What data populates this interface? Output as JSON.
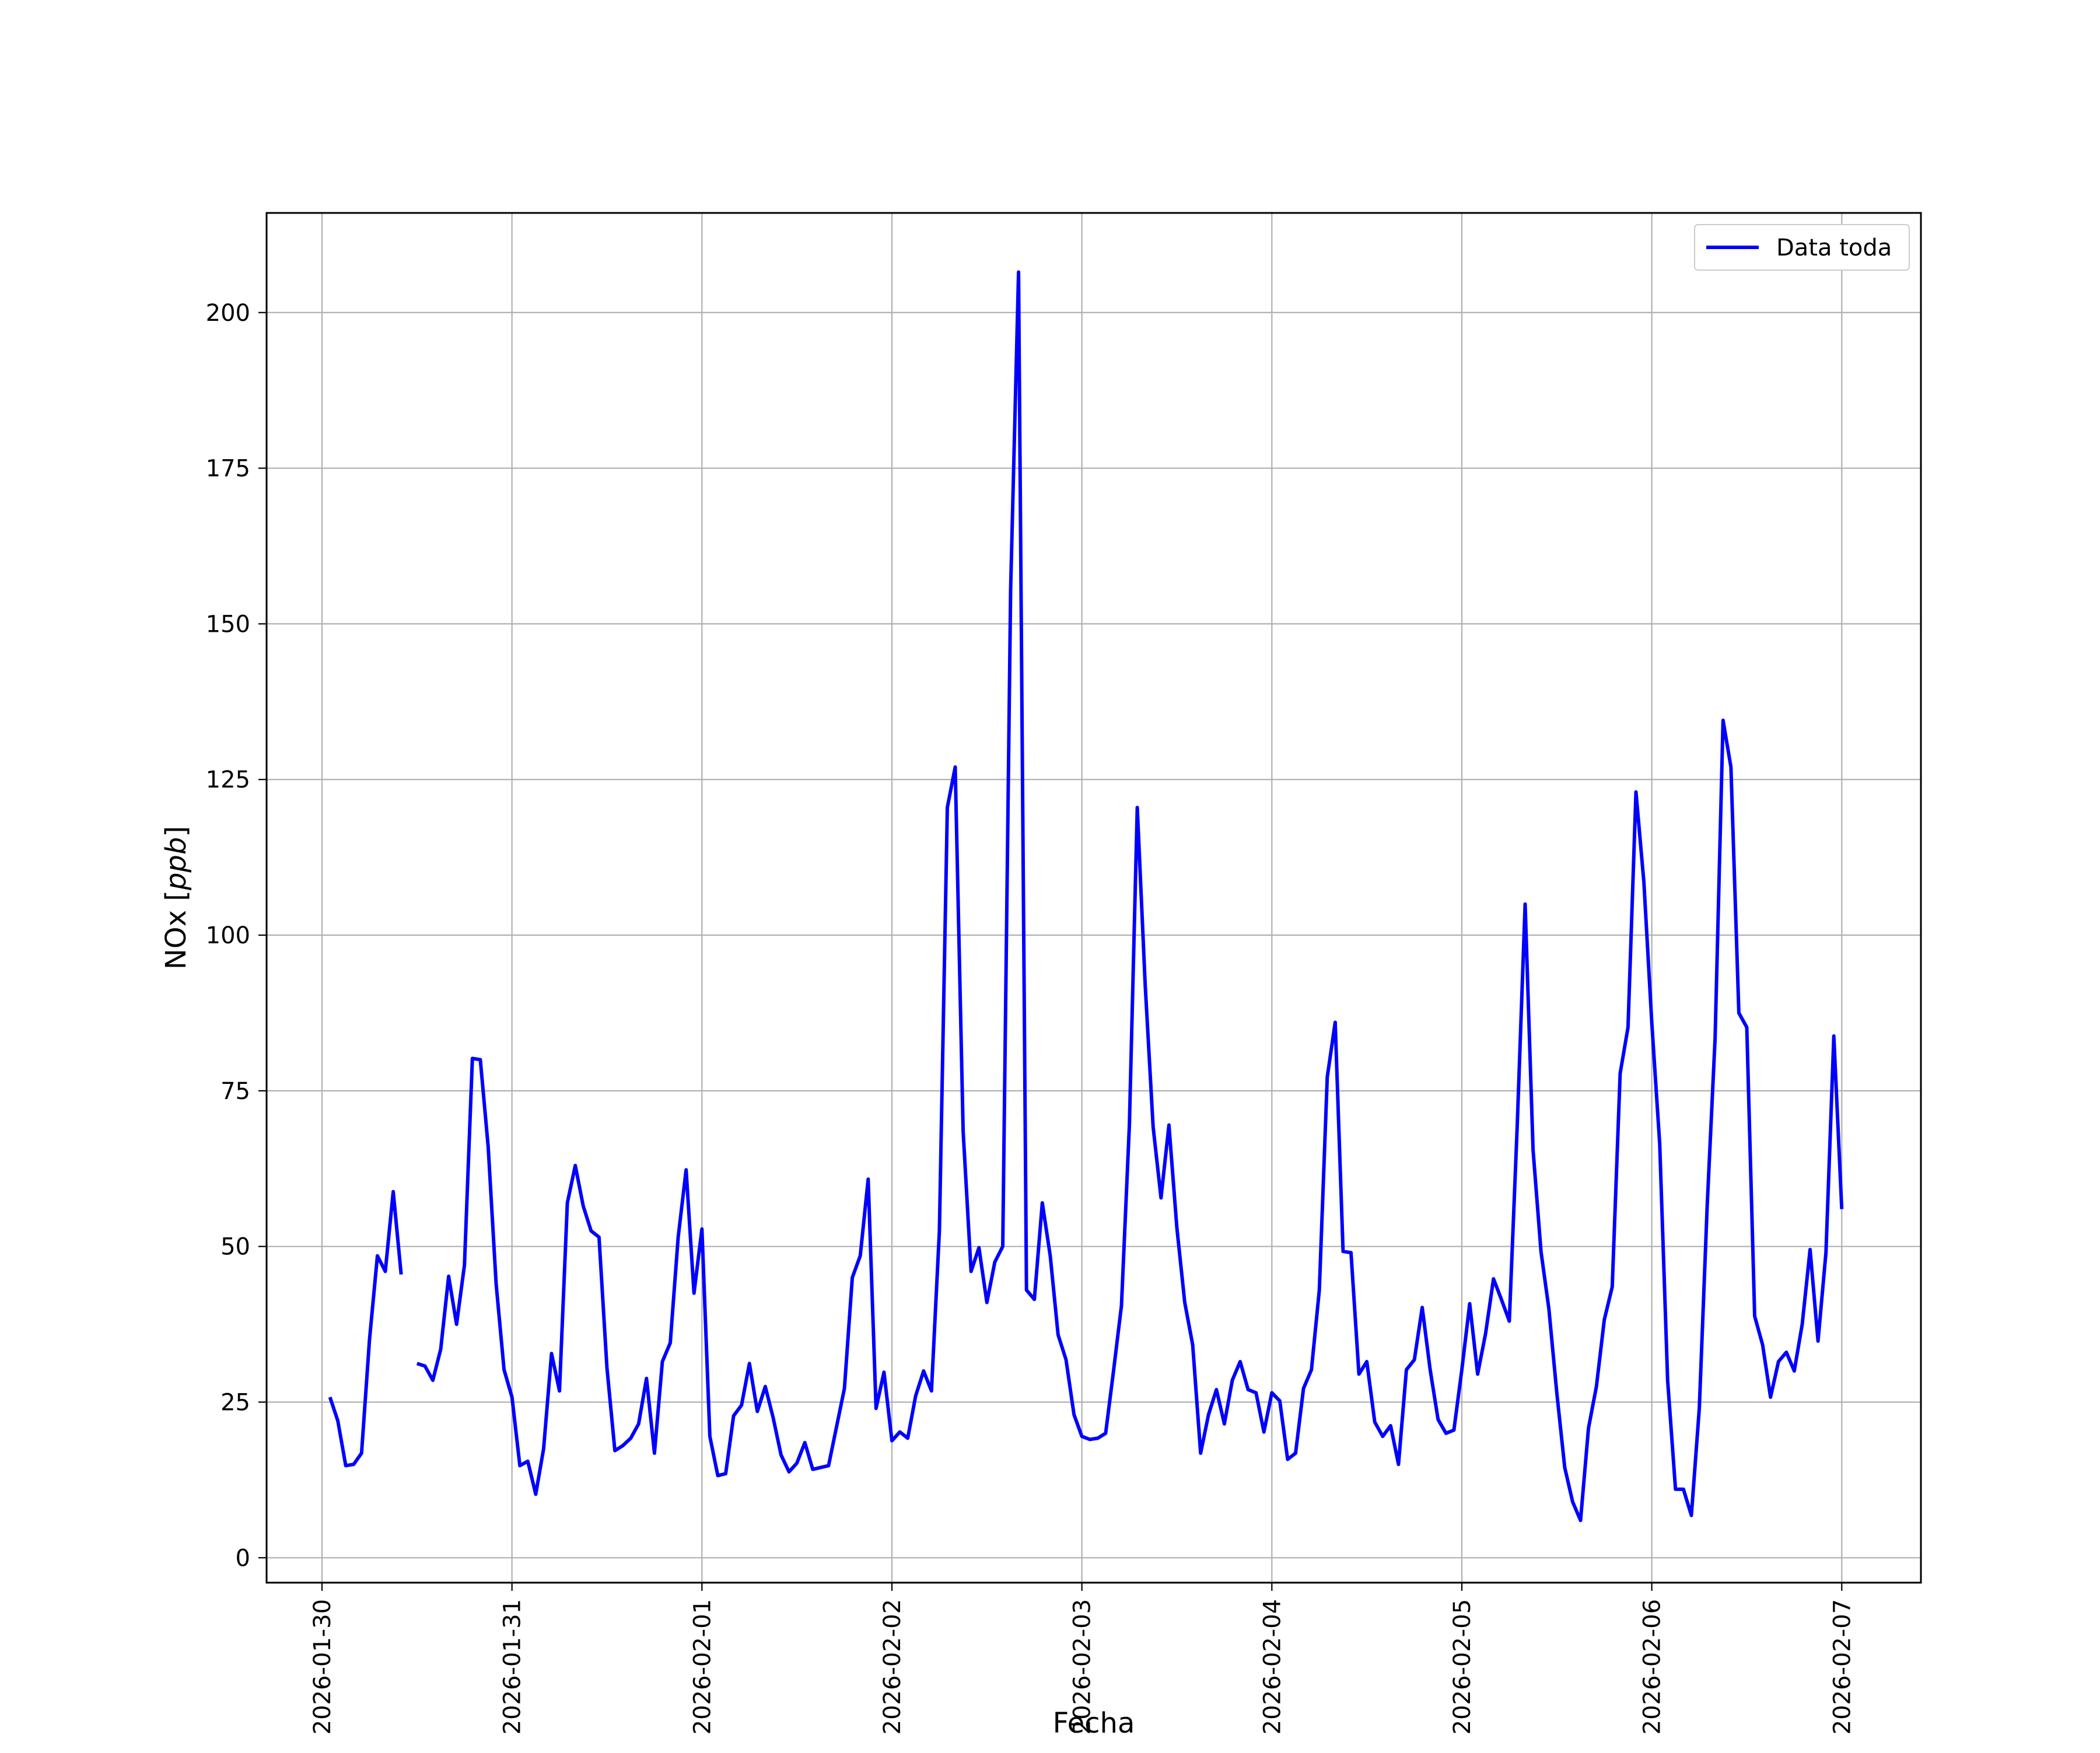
{
  "chart_data": {
    "type": "line",
    "title": "",
    "xlabel": "Fecha",
    "ylabel": "NOx [ppb]",
    "ylabel_main": "NOx ",
    "ylabel_unit": "ppb",
    "xlim": [
      "2026-01-29T17:00",
      "2026-02-07T10:00"
    ],
    "ylim": [
      -4,
      216
    ],
    "grid": true,
    "legend_position": "top-right",
    "x_ticks": [
      "2026-01-30",
      "2026-01-31",
      "2026-02-01",
      "2026-02-02",
      "2026-02-03",
      "2026-02-04",
      "2026-02-05",
      "2026-02-06",
      "2026-02-07"
    ],
    "y_ticks": [
      0,
      25,
      50,
      75,
      100,
      125,
      150,
      175,
      200
    ],
    "series": [
      {
        "name": "Data toda",
        "color": "#0000ff",
        "points": [
          [
            "2026-01-30T01:00",
            25.8
          ],
          [
            "2026-01-30T02:00",
            22.0
          ],
          [
            "2026-01-30T03:00",
            14.8
          ],
          [
            "2026-01-30T04:00",
            15.0
          ],
          [
            "2026-01-30T05:00",
            16.8
          ],
          [
            "2026-01-30T06:00",
            35.0
          ],
          [
            "2026-01-30T07:00",
            48.5
          ],
          [
            "2026-01-30T08:00",
            46.0
          ],
          [
            "2026-01-30T09:00",
            58.8
          ],
          [
            "2026-01-30T10:00",
            45.5
          ],
          null,
          [
            "2026-01-30T12:00",
            31.2
          ],
          [
            "2026-01-30T13:00",
            30.8
          ],
          [
            "2026-01-30T14:00",
            28.5
          ],
          [
            "2026-01-30T15:00",
            33.5
          ],
          [
            "2026-01-30T16:00",
            45.2
          ],
          [
            "2026-01-30T17:00",
            37.5
          ],
          [
            "2026-01-30T18:00",
            47.0
          ],
          [
            "2026-01-30T19:00",
            80.2
          ],
          [
            "2026-01-30T20:00",
            80.0
          ],
          [
            "2026-01-30T21:00",
            66.0
          ],
          [
            "2026-01-30T22:00",
            44.0
          ],
          [
            "2026-01-30T23:00",
            30.2
          ],
          [
            "2026-01-31T00:00",
            25.8
          ],
          [
            "2026-01-31T01:00",
            14.8
          ],
          [
            "2026-01-31T02:00",
            15.5
          ],
          [
            "2026-01-31T03:00",
            10.2
          ],
          [
            "2026-01-31T04:00",
            17.5
          ],
          [
            "2026-01-31T05:00",
            32.8
          ],
          [
            "2026-01-31T06:00",
            26.8
          ],
          [
            "2026-01-31T07:00",
            57.0
          ],
          [
            "2026-01-31T08:00",
            63.0
          ],
          [
            "2026-01-31T09:00",
            56.5
          ],
          [
            "2026-01-31T10:00",
            52.5
          ],
          [
            "2026-01-31T11:00",
            51.5
          ],
          [
            "2026-01-31T12:00",
            30.5
          ],
          [
            "2026-01-31T13:00",
            17.2
          ],
          [
            "2026-01-31T14:00",
            18.0
          ],
          [
            "2026-01-31T15:00",
            19.2
          ],
          [
            "2026-01-31T16:00",
            21.5
          ],
          [
            "2026-01-31T17:00",
            28.8
          ],
          [
            "2026-01-31T18:00",
            16.8
          ],
          [
            "2026-01-31T19:00",
            31.5
          ],
          [
            "2026-01-31T20:00",
            34.5
          ],
          [
            "2026-01-31T21:00",
            51.5
          ],
          [
            "2026-01-31T22:00",
            62.3
          ],
          [
            "2026-01-31T23:00",
            42.5
          ],
          [
            "2026-02-01T00:00",
            52.8
          ],
          [
            "2026-02-01T01:00",
            19.5
          ],
          [
            "2026-02-01T02:00",
            13.2
          ],
          [
            "2026-02-01T03:00",
            13.5
          ],
          [
            "2026-02-01T04:00",
            22.8
          ],
          [
            "2026-02-01T05:00",
            24.5
          ],
          [
            "2026-02-01T06:00",
            31.2
          ],
          [
            "2026-02-01T07:00",
            23.5
          ],
          [
            "2026-02-01T08:00",
            27.5
          ],
          [
            "2026-02-01T09:00",
            22.5
          ],
          [
            "2026-02-01T10:00",
            16.5
          ],
          [
            "2026-02-01T11:00",
            13.8
          ],
          [
            "2026-02-01T12:00",
            15.2
          ],
          [
            "2026-02-01T13:00",
            18.5
          ],
          [
            "2026-02-01T14:00",
            14.2
          ],
          [
            "2026-02-01T15:00",
            14.5
          ],
          [
            "2026-02-01T16:00",
            14.8
          ],
          [
            "2026-02-01T17:00",
            21.0
          ],
          [
            "2026-02-01T18:00",
            27.2
          ],
          [
            "2026-02-01T19:00",
            45.0
          ],
          [
            "2026-02-01T20:00",
            48.5
          ],
          [
            "2026-02-01T21:00",
            60.8
          ],
          [
            "2026-02-01T22:00",
            24.0
          ],
          [
            "2026-02-01T23:00",
            29.8
          ],
          [
            "2026-02-02T00:00",
            18.8
          ],
          [
            "2026-02-02T01:00",
            20.2
          ],
          [
            "2026-02-02T02:00",
            19.2
          ],
          [
            "2026-02-02T03:00",
            26.0
          ],
          [
            "2026-02-02T04:00",
            30.0
          ],
          [
            "2026-02-02T05:00",
            26.8
          ],
          [
            "2026-02-02T06:00",
            52.5
          ],
          [
            "2026-02-02T07:00",
            120.5
          ],
          [
            "2026-02-02T08:00",
            127.0
          ],
          [
            "2026-02-02T09:00",
            68.5
          ],
          [
            "2026-02-02T10:00",
            46.0
          ],
          [
            "2026-02-02T11:00",
            49.8
          ],
          [
            "2026-02-02T12:00",
            41.0
          ],
          [
            "2026-02-02T13:00",
            47.5
          ],
          [
            "2026-02-02T14:00",
            50.0
          ],
          [
            "2026-02-02T15:00",
            155.5
          ],
          [
            "2026-02-02T16:00",
            206.5
          ],
          [
            "2026-02-02T17:00",
            43.0
          ],
          [
            "2026-02-02T18:00",
            41.5
          ],
          [
            "2026-02-02T19:00",
            57.0
          ],
          [
            "2026-02-02T20:00",
            48.5
          ],
          [
            "2026-02-02T21:00",
            35.8
          ],
          [
            "2026-02-02T22:00",
            31.8
          ],
          [
            "2026-02-02T23:00",
            23.0
          ],
          [
            "2026-02-03T00:00",
            19.5
          ],
          [
            "2026-02-03T01:00",
            19.0
          ],
          [
            "2026-02-03T02:00",
            19.2
          ],
          [
            "2026-02-03T03:00",
            20.0
          ],
          [
            "2026-02-03T04:00",
            30.0
          ],
          [
            "2026-02-03T05:00",
            40.5
          ],
          [
            "2026-02-03T06:00",
            69.5
          ],
          [
            "2026-02-03T07:00",
            120.5
          ],
          [
            "2026-02-03T08:00",
            92.0
          ],
          [
            "2026-02-03T09:00",
            69.2
          ],
          [
            "2026-02-03T10:00",
            57.8
          ],
          [
            "2026-02-03T11:00",
            69.5
          ],
          [
            "2026-02-03T12:00",
            53.0
          ],
          [
            "2026-02-03T13:00",
            41.0
          ],
          [
            "2026-02-03T14:00",
            34.2
          ],
          [
            "2026-02-03T15:00",
            16.8
          ],
          [
            "2026-02-03T16:00",
            23.0
          ],
          [
            "2026-02-03T17:00",
            27.0
          ],
          [
            "2026-02-03T18:00",
            21.5
          ],
          [
            "2026-02-03T19:00",
            28.5
          ],
          [
            "2026-02-03T20:00",
            31.5
          ],
          [
            "2026-02-03T21:00",
            27.0
          ],
          [
            "2026-02-03T22:00",
            26.5
          ],
          [
            "2026-02-03T23:00",
            20.2
          ],
          [
            "2026-02-04T00:00",
            26.5
          ],
          [
            "2026-02-04T01:00",
            25.2
          ],
          [
            "2026-02-04T02:00",
            15.8
          ],
          [
            "2026-02-04T03:00",
            16.8
          ],
          [
            "2026-02-04T04:00",
            27.2
          ],
          [
            "2026-02-04T05:00",
            30.2
          ],
          [
            "2026-02-04T06:00",
            43.0
          ],
          [
            "2026-02-04T07:00",
            77.2
          ],
          [
            "2026-02-04T08:00",
            86.0
          ],
          [
            "2026-02-04T09:00",
            49.2
          ],
          [
            "2026-02-04T10:00",
            49.0
          ],
          [
            "2026-02-04T11:00",
            29.5
          ],
          [
            "2026-02-04T12:00",
            31.5
          ],
          [
            "2026-02-04T13:00",
            21.8
          ],
          [
            "2026-02-04T14:00",
            19.5
          ],
          [
            "2026-02-04T15:00",
            21.2
          ],
          [
            "2026-02-04T16:00",
            15.0
          ],
          [
            "2026-02-04T17:00",
            30.2
          ],
          [
            "2026-02-04T18:00",
            31.8
          ],
          [
            "2026-02-04T19:00",
            40.2
          ],
          [
            "2026-02-04T20:00",
            30.2
          ],
          [
            "2026-02-04T21:00",
            22.2
          ],
          [
            "2026-02-04T22:00",
            20.0
          ],
          [
            "2026-02-04T23:00",
            20.5
          ],
          [
            "2026-02-05T00:00",
            30.2
          ],
          [
            "2026-02-05T01:00",
            40.8
          ],
          [
            "2026-02-05T02:00",
            29.5
          ],
          [
            "2026-02-05T03:00",
            36.0
          ],
          [
            "2026-02-05T04:00",
            44.8
          ],
          [
            "2026-02-05T05:00",
            41.5
          ],
          [
            "2026-02-05T06:00",
            38.0
          ],
          [
            "2026-02-05T07:00",
            69.5
          ],
          [
            "2026-02-05T08:00",
            105.0
          ],
          [
            "2026-02-05T09:00",
            65.5
          ],
          [
            "2026-02-05T10:00",
            49.2
          ],
          [
            "2026-02-05T11:00",
            40.0
          ],
          [
            "2026-02-05T12:00",
            26.5
          ],
          [
            "2026-02-05T13:00",
            14.5
          ],
          [
            "2026-02-05T14:00",
            9.0
          ],
          [
            "2026-02-05T15:00",
            6.0
          ],
          [
            "2026-02-05T16:00",
            20.8
          ],
          [
            "2026-02-05T17:00",
            27.5
          ],
          [
            "2026-02-05T18:00",
            38.2
          ],
          [
            "2026-02-05T19:00",
            43.5
          ],
          [
            "2026-02-05T20:00",
            77.8
          ],
          [
            "2026-02-05T21:00",
            85.2
          ],
          [
            "2026-02-05T22:00",
            123.0
          ],
          [
            "2026-02-05T23:00",
            108.5
          ],
          [
            "2026-02-06T00:00",
            86.0
          ],
          [
            "2026-02-06T01:00",
            66.5
          ],
          [
            "2026-02-06T02:00",
            28.5
          ],
          [
            "2026-02-06T03:00",
            11.0
          ],
          [
            "2026-02-06T04:00",
            11.0
          ],
          [
            "2026-02-06T05:00",
            6.8
          ],
          [
            "2026-02-06T06:00",
            24.0
          ],
          [
            "2026-02-06T07:00",
            56.5
          ],
          [
            "2026-02-06T08:00",
            83.5
          ],
          [
            "2026-02-06T09:00",
            134.5
          ],
          [
            "2026-02-06T10:00",
            127.0
          ],
          [
            "2026-02-06T11:00",
            87.5
          ],
          [
            "2026-02-06T12:00",
            85.2
          ],
          [
            "2026-02-06T13:00",
            38.8
          ],
          [
            "2026-02-06T14:00",
            34.2
          ],
          [
            "2026-02-06T15:00",
            25.8
          ],
          [
            "2026-02-06T16:00",
            31.5
          ],
          [
            "2026-02-06T17:00",
            33.0
          ],
          [
            "2026-02-06T18:00",
            30.0
          ],
          [
            "2026-02-06T19:00",
            37.5
          ],
          [
            "2026-02-06T20:00",
            49.5
          ],
          [
            "2026-02-06T21:00",
            34.8
          ],
          [
            "2026-02-06T22:00",
            49.0
          ],
          [
            "2026-02-06T23:00",
            83.8
          ],
          [
            "2026-02-07T00:00",
            56.0
          ]
        ]
      }
    ]
  }
}
